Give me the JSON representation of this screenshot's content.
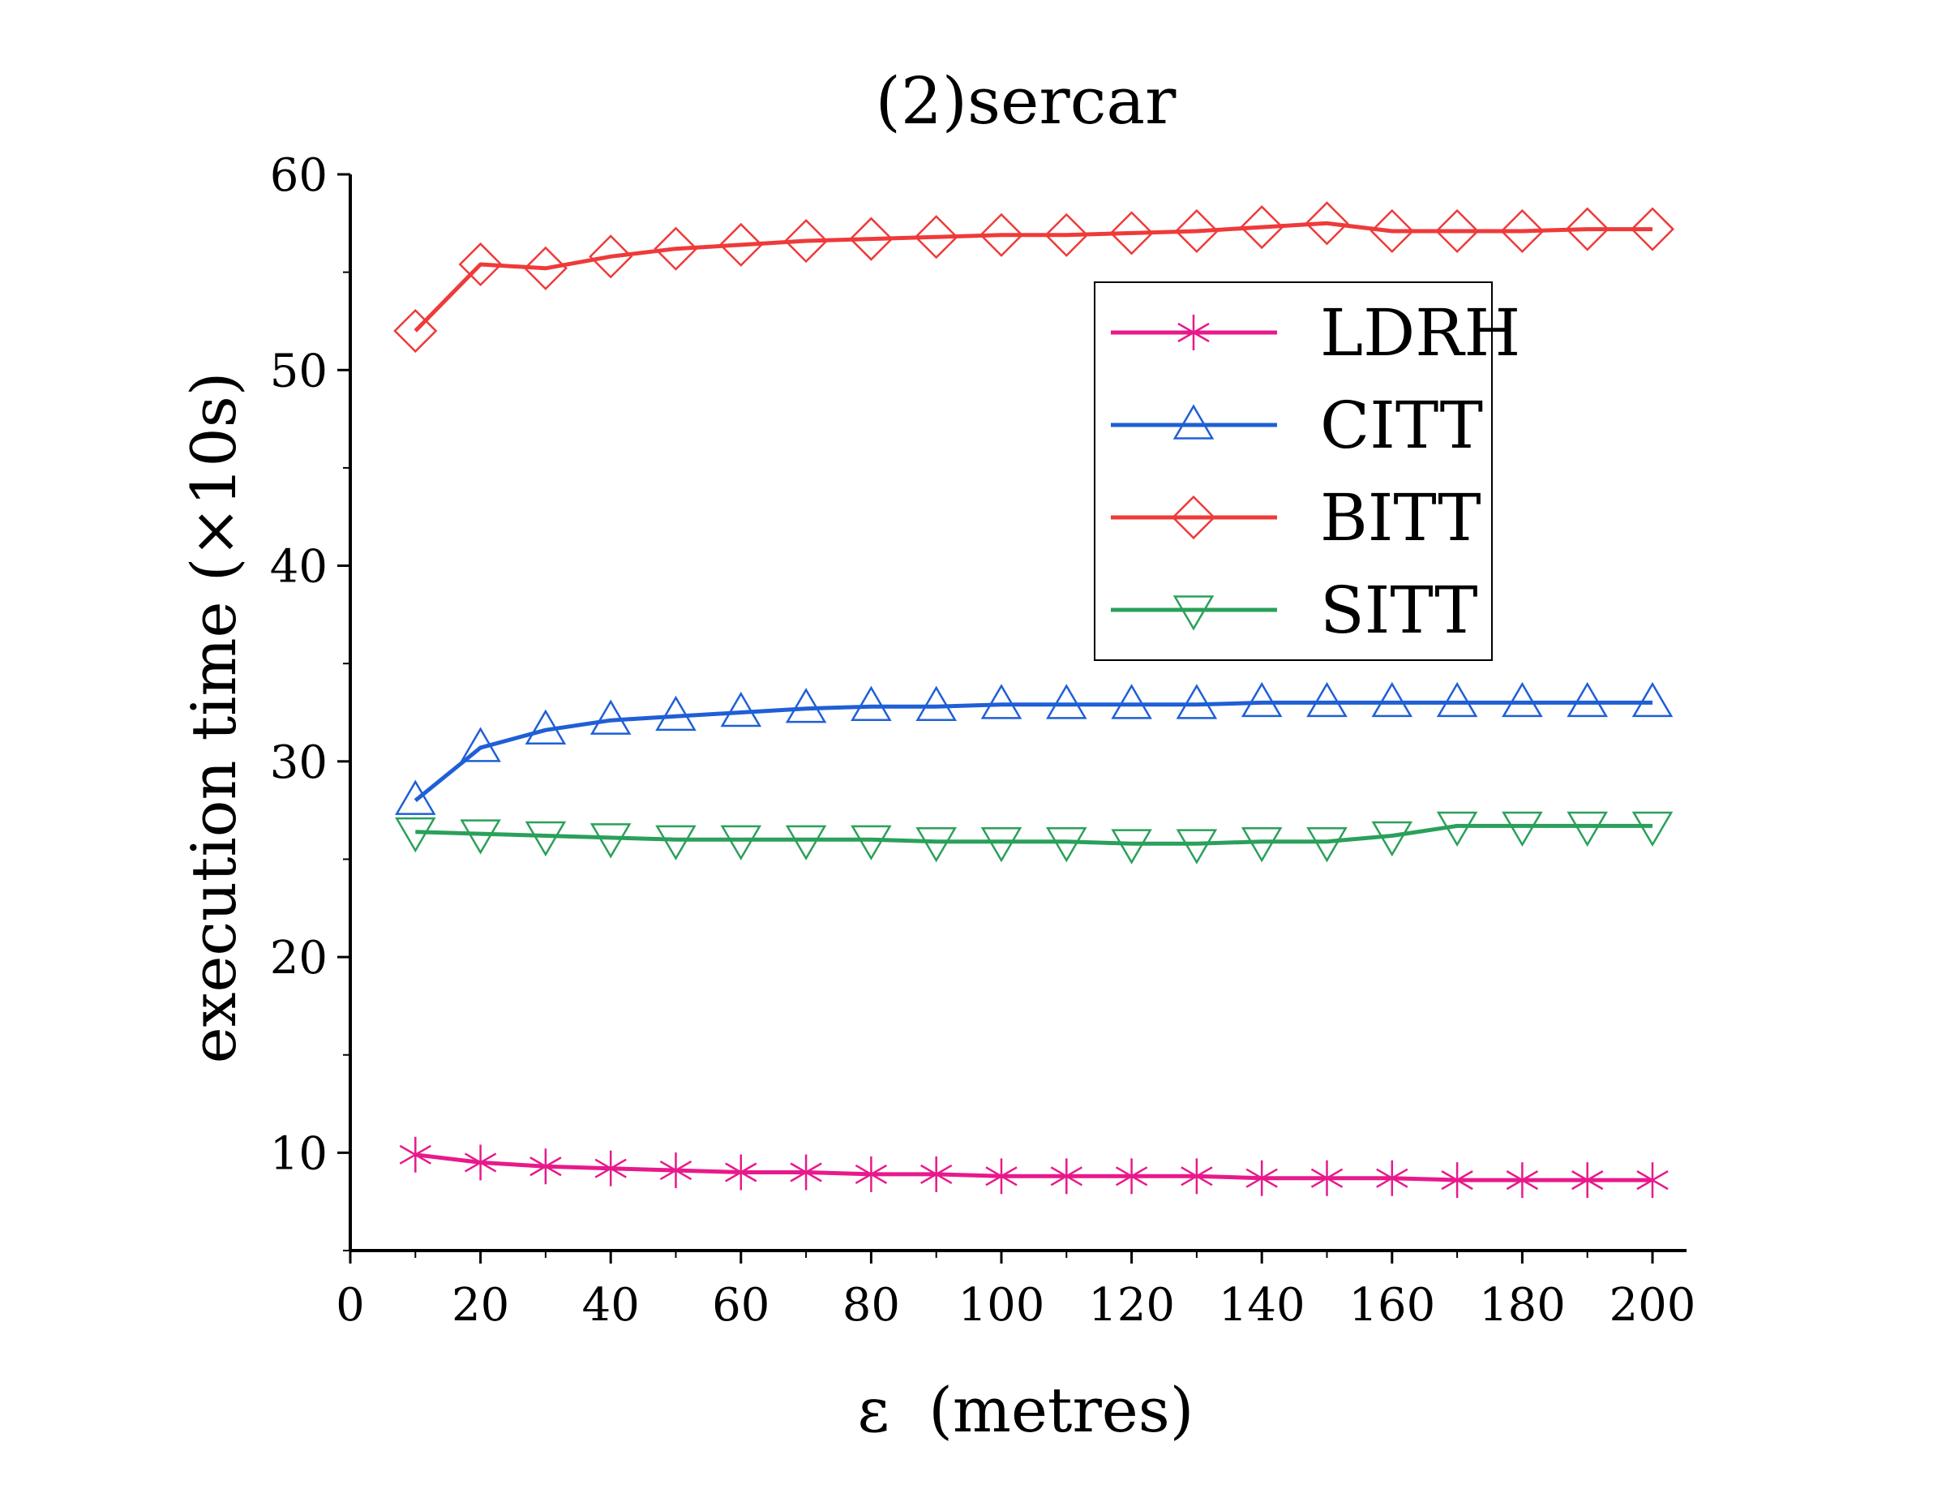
{
  "chart_data": {
    "type": "line",
    "title": "(2)sercar",
    "xlabel": "ε  (metres)",
    "ylabel": "execution time (×10s)",
    "xlim": [
      0,
      205
    ],
    "ylim": [
      5,
      60
    ],
    "xticks": [
      0,
      20,
      40,
      60,
      80,
      100,
      120,
      140,
      160,
      180,
      200
    ],
    "yticks": [
      10,
      20,
      30,
      40,
      50,
      60
    ],
    "grid": false,
    "legend_position": "top-right",
    "x": [
      10,
      20,
      30,
      40,
      50,
      60,
      70,
      80,
      90,
      100,
      110,
      120,
      130,
      140,
      150,
      160,
      170,
      180,
      190,
      200
    ],
    "series": [
      {
        "name": "LDRH",
        "color": "#e8198b",
        "marker": "asterisk",
        "values": [
          9.9,
          9.5,
          9.3,
          9.2,
          9.1,
          9.0,
          9.0,
          8.9,
          8.9,
          8.8,
          8.8,
          8.8,
          8.8,
          8.7,
          8.7,
          8.7,
          8.6,
          8.6,
          8.6,
          8.6
        ]
      },
      {
        "name": "CITT",
        "color": "#1f5fd6",
        "marker": "triangle-up",
        "values": [
          28.0,
          30.7,
          31.6,
          32.1,
          32.3,
          32.5,
          32.7,
          32.8,
          32.8,
          32.9,
          32.9,
          32.9,
          32.9,
          33.0,
          33.0,
          33.0,
          33.0,
          33.0,
          33.0,
          33.0
        ]
      },
      {
        "name": "BITT",
        "color": "#ef3a3a",
        "marker": "diamond",
        "values": [
          52.0,
          55.4,
          55.2,
          55.8,
          56.2,
          56.4,
          56.6,
          56.7,
          56.8,
          56.9,
          56.9,
          57.0,
          57.1,
          57.3,
          57.5,
          57.1,
          57.1,
          57.1,
          57.2,
          57.2
        ]
      },
      {
        "name": "SITT",
        "color": "#2aa05a",
        "marker": "triangle-down",
        "values": [
          26.4,
          26.3,
          26.2,
          26.1,
          26.0,
          26.0,
          26.0,
          26.0,
          25.9,
          25.9,
          25.9,
          25.8,
          25.8,
          25.9,
          25.9,
          26.2,
          26.7,
          26.7,
          26.7,
          26.7
        ]
      }
    ]
  }
}
